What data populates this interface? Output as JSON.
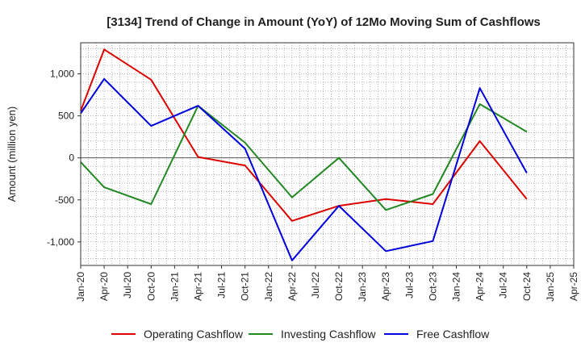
{
  "chart_data": {
    "type": "line",
    "title": "[3134]  Trend of Change in Amount (YoY) of 12Mo Moving Sum of Cashflows",
    "xlabel": "",
    "ylabel": "Amount (million yen)",
    "categories": [
      "Jan-20",
      "Apr-20",
      "Jul-20",
      "Oct-20",
      "Jan-21",
      "Apr-21",
      "Jul-21",
      "Oct-21",
      "Jan-22",
      "Apr-22",
      "Jul-22",
      "Oct-22",
      "Jan-23",
      "Apr-23",
      "Jul-23",
      "Oct-23",
      "Jan-24",
      "Apr-24",
      "Jul-24",
      "Oct-24",
      "Jan-25",
      "Apr-25"
    ],
    "ylim": [
      -1280,
      1370
    ],
    "yticks": [
      -1000,
      -500,
      0,
      500,
      1000
    ],
    "ytick_labels": [
      "-1,000",
      "-500",
      "0",
      "500",
      "1,000"
    ],
    "grid": true,
    "legend_position": "bottom",
    "series": [
      {
        "name": "Operating Cashflow",
        "color": "#dd0000",
        "points": [
          [
            0,
            560
          ],
          [
            1,
            1290
          ],
          [
            3,
            930
          ],
          [
            5,
            10
          ],
          [
            7,
            -90
          ],
          [
            9,
            -750
          ],
          [
            11,
            -570
          ],
          [
            13,
            -490
          ],
          [
            15,
            -550
          ],
          [
            17,
            200
          ],
          [
            19,
            -490
          ]
        ]
      },
      {
        "name": "Investing Cashflow",
        "color": "#228822",
        "points": [
          [
            0,
            -50
          ],
          [
            1,
            -350
          ],
          [
            3,
            -550
          ],
          [
            5,
            620
          ],
          [
            7,
            180
          ],
          [
            9,
            -470
          ],
          [
            11,
            0
          ],
          [
            13,
            -620
          ],
          [
            15,
            -430
          ],
          [
            17,
            640
          ],
          [
            19,
            310
          ]
        ]
      },
      {
        "name": "Free Cashflow",
        "color": "#0000dd",
        "points": [
          [
            0,
            530
          ],
          [
            1,
            940
          ],
          [
            3,
            380
          ],
          [
            5,
            620
          ],
          [
            7,
            110
          ],
          [
            9,
            -1220
          ],
          [
            11,
            -570
          ],
          [
            13,
            -1110
          ],
          [
            15,
            -990
          ],
          [
            17,
            830
          ],
          [
            19,
            -180
          ]
        ]
      }
    ]
  }
}
